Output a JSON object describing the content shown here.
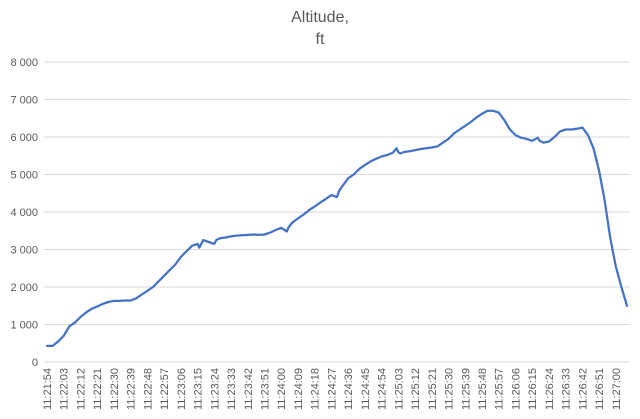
{
  "chart_data": {
    "type": "line",
    "title": "Altitude,",
    "subtitle": "ft",
    "xlabel": "",
    "ylabel": "",
    "ylim": [
      0,
      8000
    ],
    "y_ticks": [
      0,
      1000,
      2000,
      3000,
      4000,
      5000,
      6000,
      7000,
      8000
    ],
    "y_tick_labels": [
      "0",
      "1 000",
      "2 000",
      "3 000",
      "4 000",
      "5 000",
      "6 000",
      "7 000",
      "8 000"
    ],
    "x_tick_labels": [
      "11:21:54",
      "11:22:03",
      "11:22:12",
      "11:22:21",
      "11:22:30",
      "11:22:39",
      "11:22:48",
      "11:22:57",
      "11:23:06",
      "11:23:15",
      "11:23:24",
      "11:23:33",
      "11:23:42",
      "11:23:51",
      "11:24:00",
      "11:24:09",
      "11:24:18",
      "11:24:27",
      "11:24:36",
      "11:24:45",
      "11:24:54",
      "11:25:03",
      "11:25:12",
      "11:25:21",
      "11:25:30",
      "11:25:39",
      "11:25:48",
      "11:25:57",
      "11:26:06",
      "11:26:15",
      "11:26:24",
      "11:26:33",
      "11:26:42",
      "11:26:51",
      "11:27:00"
    ],
    "grid": true,
    "legend": "none",
    "series_color": "#4472c4",
    "series": [
      {
        "x": [
          "11:21:54",
          "11:21:57",
          "11:22:00",
          "11:22:03",
          "11:22:06",
          "11:22:09",
          "11:22:12",
          "11:22:15",
          "11:22:18",
          "11:22:21",
          "11:22:24",
          "11:22:27",
          "11:22:30",
          "11:22:33",
          "11:22:36",
          "11:22:39",
          "11:22:42",
          "11:22:45",
          "11:22:48",
          "11:22:51",
          "11:22:54",
          "11:22:57",
          "11:23:00",
          "11:23:03",
          "11:23:06",
          "11:23:09",
          "11:23:12",
          "11:23:15",
          "11:23:16",
          "11:23:18",
          "11:23:21",
          "11:23:24",
          "11:23:25",
          "11:23:27",
          "11:23:30",
          "11:23:33",
          "11:23:36",
          "11:23:39",
          "11:23:42",
          "11:23:45",
          "11:23:48",
          "11:23:51",
          "11:23:54",
          "11:23:57",
          "11:24:00",
          "11:24:03",
          "11:24:04",
          "11:24:06",
          "11:24:09",
          "11:24:12",
          "11:24:15",
          "11:24:18",
          "11:24:21",
          "11:24:24",
          "11:24:27",
          "11:24:30",
          "11:24:31",
          "11:24:33",
          "11:24:36",
          "11:24:39",
          "11:24:42",
          "11:24:45",
          "11:24:48",
          "11:24:51",
          "11:24:54",
          "11:24:57",
          "11:25:00",
          "11:25:02",
          "11:25:03",
          "11:25:04",
          "11:25:06",
          "11:25:09",
          "11:25:12",
          "11:25:15",
          "11:25:18",
          "11:25:21",
          "11:25:24",
          "11:25:27",
          "11:25:30",
          "11:25:33",
          "11:25:36",
          "11:25:39",
          "11:25:42",
          "11:25:45",
          "11:25:48",
          "11:25:51",
          "11:25:54",
          "11:25:57",
          "11:26:00",
          "11:26:03",
          "11:26:06",
          "11:26:09",
          "11:26:12",
          "11:26:15",
          "11:26:18",
          "11:26:19",
          "11:26:21",
          "11:26:24",
          "11:26:27",
          "11:26:30",
          "11:26:33",
          "11:26:36",
          "11:26:39",
          "11:26:42",
          "11:26:45",
          "11:26:48",
          "11:26:51",
          "11:26:54",
          "11:26:57",
          "11:27:00",
          "11:27:03",
          "11:27:06"
        ],
        "y": [
          430,
          430,
          550,
          700,
          950,
          1050,
          1200,
          1320,
          1420,
          1480,
          1550,
          1600,
          1630,
          1630,
          1640,
          1640,
          1700,
          1800,
          1900,
          2000,
          2150,
          2300,
          2450,
          2600,
          2800,
          2950,
          3100,
          3150,
          3050,
          3250,
          3200,
          3150,
          3250,
          3300,
          3320,
          3350,
          3370,
          3380,
          3390,
          3400,
          3390,
          3400,
          3450,
          3520,
          3580,
          3480,
          3600,
          3720,
          3830,
          3930,
          4050,
          4150,
          4250,
          4350,
          4450,
          4400,
          4550,
          4700,
          4900,
          5000,
          5150,
          5250,
          5350,
          5420,
          5480,
          5520,
          5580,
          5700,
          5600,
          5560,
          5600,
          5620,
          5650,
          5680,
          5700,
          5720,
          5750,
          5850,
          5950,
          6100,
          6200,
          6300,
          6400,
          6520,
          6620,
          6700,
          6700,
          6650,
          6450,
          6200,
          6050,
          5980,
          5950,
          5900,
          5980,
          5900,
          5850,
          5880,
          6000,
          6150,
          6200,
          6200,
          6220,
          6250,
          6050,
          5700,
          5100,
          4300,
          3300,
          2550,
          2000,
          1500
        ],
        "values_note": ""
      }
    ]
  }
}
